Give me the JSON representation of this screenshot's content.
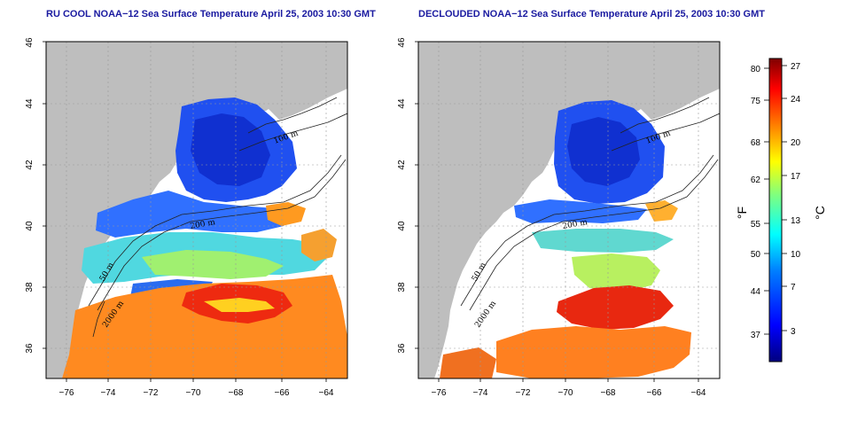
{
  "panels": [
    {
      "title": "RU COOL NOAA−12 Sea Surface Temperature April 25, 2003 10:30 GMT",
      "contour_labels": [
        "100 m",
        "200 m",
        "50 m",
        "2000 m"
      ]
    },
    {
      "title": "DECLOUDED NOAA−12 Sea Surface Temperature April 25, 2003 10:30 GMT",
      "contour_labels": [
        "100 m",
        "200 m",
        "50 m",
        "2000 m"
      ]
    }
  ],
  "axes": {
    "lon_ticks": [
      "−76",
      "−74",
      "−72",
      "−70",
      "−68",
      "−66",
      "−64"
    ],
    "lat_ticks": [
      "46",
      "44",
      "42",
      "40",
      "38",
      "36"
    ]
  },
  "colorbar": {
    "fahrenheit_ticks": [
      "80",
      "75",
      "68",
      "62",
      "55",
      "50",
      "44",
      "37"
    ],
    "celsius_ticks": [
      "27",
      "24",
      "20",
      "17",
      "13",
      "10",
      "7",
      "3"
    ],
    "fahrenheit_unit": "°F",
    "celsius_unit": "°C",
    "colors": [
      "#00007f",
      "#0000ff",
      "#007fff",
      "#00ffff",
      "#7fff7f",
      "#ffff00",
      "#ff7f00",
      "#ff0000",
      "#7f0000"
    ]
  },
  "map_colors": {
    "land": "#bebebe",
    "no_data": "#ffffff"
  }
}
